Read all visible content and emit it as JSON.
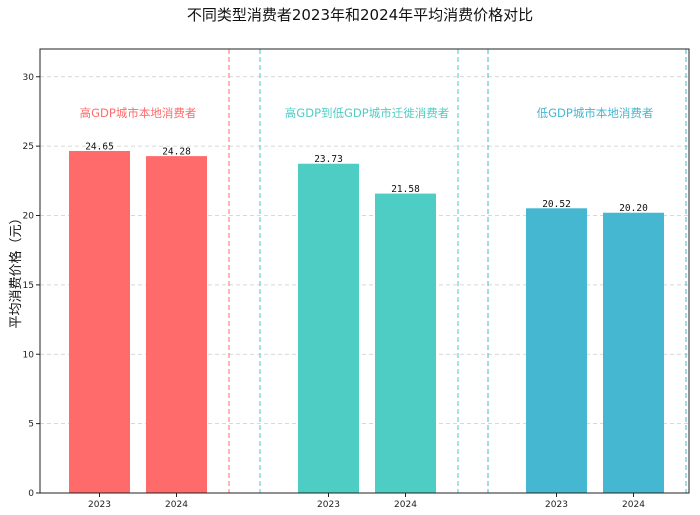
{
  "chart_data": {
    "type": "bar",
    "title": "不同类型消费者2023年和2024年平均消费价格对比",
    "xlabel": "",
    "ylabel": "平均消费价格（元）",
    "ylim": [
      0,
      32
    ],
    "yticks": [
      0,
      5,
      10,
      15,
      20,
      25,
      30
    ],
    "grid": true,
    "groups": [
      {
        "name": "高GDP城市本地消费者",
        "color": "#FF6B6B",
        "categories": [
          "2023",
          "2024"
        ],
        "values": [
          24.65,
          24.28
        ],
        "value_labels": [
          "24.65",
          "24.28"
        ]
      },
      {
        "name": "高GDP到低GDP城市迁徙消费者",
        "color": "#4ECDC4",
        "categories": [
          "2023",
          "2024"
        ],
        "values": [
          23.73,
          21.58
        ],
        "value_labels": [
          "23.73",
          "21.58"
        ]
      },
      {
        "name": "低GDP城市本地消费者",
        "color": "#45B7D1",
        "categories": [
          "2023",
          "2024"
        ],
        "values": [
          20.52,
          20.2
        ],
        "value_labels": [
          "20.52",
          "20.20"
        ]
      }
    ]
  }
}
